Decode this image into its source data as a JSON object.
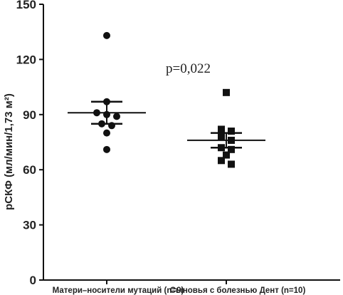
{
  "chart_data": {
    "type": "scatter",
    "ylabel": "рСКФ (мл/мин/1,73 м²)",
    "ylim": [
      0,
      150
    ],
    "yticks": [
      0,
      30,
      60,
      90,
      120,
      150
    ],
    "yticks_labels": [
      "0",
      "30",
      "60",
      "90",
      "120",
      "150"
    ],
    "categories": [
      "Матери–носители мутаций (n=9)",
      "Сыновья с болезнью Дент (n=10)"
    ],
    "series": [
      {
        "category_index": 0,
        "marker": "circle",
        "values": [
          133,
          97,
          91,
          90,
          89,
          85,
          84,
          80,
          71
        ],
        "mean": 91,
        "error_upper": 97,
        "error_lower": 85
      },
      {
        "category_index": 1,
        "marker": "square",
        "values": [
          102,
          82,
          81,
          78,
          76,
          72,
          71,
          68,
          65,
          63
        ],
        "mean": 76,
        "error_upper": 80,
        "error_lower": 72
      }
    ],
    "annotation": "p=0,022",
    "grid": false,
    "legend": "none",
    "color": "#111111"
  }
}
